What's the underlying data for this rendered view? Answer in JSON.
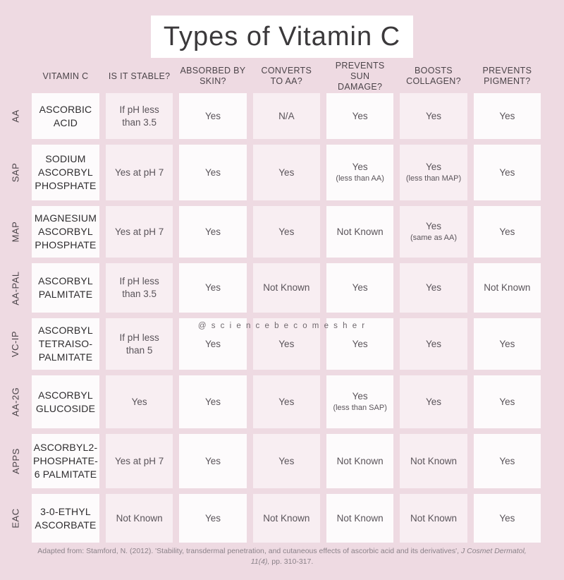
{
  "page": {
    "title": "Types of Vitamin C",
    "watermark": "@ s c i e n c e b e c o m e s h e r",
    "footer": {
      "text_before": "Adapted from: Stamford, N. (2012). 'Stability, transdermal penetration, and cutaneous effects of ascorbic acid and its derivatives', ",
      "text_italic": "J Cosmet Dermatol, 11(4),",
      "text_after": " pp. 310-317."
    }
  },
  "table": {
    "columns": [
      "VITAMIN C",
      "IS IT STABLE?",
      "ABSORBED BY\nSKIN?",
      "CONVERTS\nTO AA?",
      "PREVENTS SUN\nDAMAGE?",
      "BOOSTS\nCOLLAGEN?",
      "PREVENTS\nPIGMENT?"
    ],
    "rows": [
      {
        "code": "AA",
        "name": "ASCORBIC\nACID",
        "cells": [
          {
            "text": "If pH less\nthan 3.5"
          },
          {
            "text": "Yes"
          },
          {
            "text": "N/A"
          },
          {
            "text": "Yes"
          },
          {
            "text": "Yes"
          },
          {
            "text": "Yes"
          }
        ]
      },
      {
        "code": "SAP",
        "name": "SODIUM\nASCORBYL\nPHOSPHATE",
        "cells": [
          {
            "text": "Yes at pH 7"
          },
          {
            "text": "Yes"
          },
          {
            "text": "Yes"
          },
          {
            "text": "Yes",
            "note": "(less than AA)"
          },
          {
            "text": "Yes",
            "note": "(less than MAP)"
          },
          {
            "text": "Yes"
          }
        ]
      },
      {
        "code": "MAP",
        "name": "MAGNESIUM\nASCORBYL\nPHOSPHATE",
        "cells": [
          {
            "text": "Yes at pH 7"
          },
          {
            "text": "Yes"
          },
          {
            "text": "Yes"
          },
          {
            "text": "Not Known"
          },
          {
            "text": "Yes",
            "note": "(same as AA)"
          },
          {
            "text": "Yes"
          }
        ]
      },
      {
        "code": "AA-PAL",
        "name": "ASCORBYL\nPALMITATE",
        "cells": [
          {
            "text": "If pH less\nthan 3.5"
          },
          {
            "text": "Yes"
          },
          {
            "text": "Not Known"
          },
          {
            "text": "Yes"
          },
          {
            "text": "Yes"
          },
          {
            "text": "Not Known"
          }
        ]
      },
      {
        "code": "VC-IP",
        "name": "ASCORBYL\nTETRAISO-\nPALMITATE",
        "cells": [
          {
            "text": "If pH less\nthan 5"
          },
          {
            "text": "Yes"
          },
          {
            "text": "Yes"
          },
          {
            "text": "Yes"
          },
          {
            "text": "Yes"
          },
          {
            "text": "Yes"
          }
        ]
      },
      {
        "code": "AA-2G",
        "name": "ASCORBYL\nGLUCOSIDE",
        "cells": [
          {
            "text": "Yes"
          },
          {
            "text": "Yes"
          },
          {
            "text": "Yes"
          },
          {
            "text": "Yes",
            "note": "(less than SAP)"
          },
          {
            "text": "Yes"
          },
          {
            "text": "Yes"
          }
        ]
      },
      {
        "code": "APPS",
        "name": "ASCORBYL2-\nPHOSPHATE-\n6 PALMITATE",
        "cells": [
          {
            "text": "Yes at pH 7"
          },
          {
            "text": "Yes"
          },
          {
            "text": "Yes"
          },
          {
            "text": "Not Known"
          },
          {
            "text": "Not Known"
          },
          {
            "text": "Yes"
          }
        ]
      },
      {
        "code": "EAC",
        "name": "3-0-ETHYL\nASCORBATE",
        "cells": [
          {
            "text": "Not Known"
          },
          {
            "text": "Yes"
          },
          {
            "text": "Not Known"
          },
          {
            "text": "Not Known"
          },
          {
            "text": "Not Known"
          },
          {
            "text": "Yes"
          }
        ]
      }
    ]
  },
  "colors": {
    "background": "#eedae2",
    "cell_white": "#fdfbfc",
    "cell_pink": "#f8eef2",
    "title_background": "#ffffff",
    "title_text": "#3b393b",
    "header_text": "#4b4449",
    "name_text": "#2e2c2e",
    "value_text": "#5a545a",
    "footer_text": "#8b8289",
    "watermark_text": "#6f686d"
  }
}
